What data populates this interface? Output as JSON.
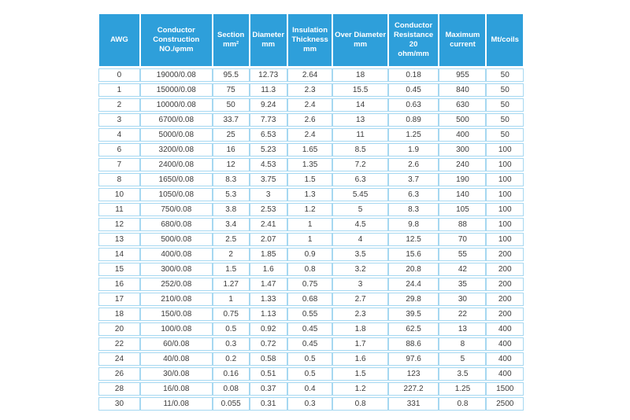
{
  "colors": {
    "header_background": "#2E9FDA",
    "header_text": "#FFFFFF",
    "cell_border": "#A6D8F1",
    "cell_text": "#3C3C3C",
    "cell_background": "#FFFFFF",
    "page_background": "#FFFFFF"
  },
  "chart_data": {
    "type": "table",
    "columns": [
      "AWG",
      "Conductor\nConstruction\nNO./φmm",
      "Section\nmm²",
      "Diameter\nmm",
      "Insulation\nThickness\nmm",
      "Over Diameter\nmm",
      "Conductor\nResistance 20\nohm/mm",
      "Maximum\ncurrent",
      "Mt/coils"
    ],
    "rows": [
      [
        "0",
        "19000/0.08",
        "95.5",
        "12.73",
        "2.64",
        "18",
        "0.18",
        "955",
        "50"
      ],
      [
        "1",
        "15000/0.08",
        "75",
        "11.3",
        "2.3",
        "15.5",
        "0.45",
        "840",
        "50"
      ],
      [
        "2",
        "10000/0.08",
        "50",
        "9.24",
        "2.4",
        "14",
        "0.63",
        "630",
        "50"
      ],
      [
        "3",
        "6700/0.08",
        "33.7",
        "7.73",
        "2.6",
        "13",
        "0.89",
        "500",
        "50"
      ],
      [
        "4",
        "5000/0.08",
        "25",
        "6.53",
        "2.4",
        "11",
        "1.25",
        "400",
        "50"
      ],
      [
        "6",
        "3200/0.08",
        "16",
        "5.23",
        "1.65",
        "8.5",
        "1.9",
        "300",
        "100"
      ],
      [
        "7",
        "2400/0.08",
        "12",
        "4.53",
        "1.35",
        "7.2",
        "2.6",
        "240",
        "100"
      ],
      [
        "8",
        "1650/0.08",
        "8.3",
        "3.75",
        "1.5",
        "6.3",
        "3.7",
        "190",
        "100"
      ],
      [
        "10",
        "1050/0.08",
        "5.3",
        "3",
        "1.3",
        "5.45",
        "6.3",
        "140",
        "100"
      ],
      [
        "11",
        "750/0.08",
        "3.8",
        "2.53",
        "1.2",
        "5",
        "8.3",
        "105",
        "100"
      ],
      [
        "12",
        "680/0.08",
        "3.4",
        "2.41",
        "1",
        "4.5",
        "9.8",
        "88",
        "100"
      ],
      [
        "13",
        "500/0.08",
        "2.5",
        "2.07",
        "1",
        "4",
        "12.5",
        "70",
        "100"
      ],
      [
        "14",
        "400/0.08",
        "2",
        "1.85",
        "0.9",
        "3.5",
        "15.6",
        "55",
        "200"
      ],
      [
        "15",
        "300/0.08",
        "1.5",
        "1.6",
        "0.8",
        "3.2",
        "20.8",
        "42",
        "200"
      ],
      [
        "16",
        "252/0.08",
        "1.27",
        "1.47",
        "0.75",
        "3",
        "24.4",
        "35",
        "200"
      ],
      [
        "17",
        "210/0.08",
        "1",
        "1.33",
        "0.68",
        "2.7",
        "29.8",
        "30",
        "200"
      ],
      [
        "18",
        "150/0.08",
        "0.75",
        "1.13",
        "0.55",
        "2.3",
        "39.5",
        "22",
        "200"
      ],
      [
        "20",
        "100/0.08",
        "0.5",
        "0.92",
        "0.45",
        "1.8",
        "62.5",
        "13",
        "400"
      ],
      [
        "22",
        "60/0.08",
        "0.3",
        "0.72",
        "0.45",
        "1.7",
        "88.6",
        "8",
        "400"
      ],
      [
        "24",
        "40/0.08",
        "0.2",
        "0.58",
        "0.5",
        "1.6",
        "97.6",
        "5",
        "400"
      ],
      [
        "26",
        "30/0.08",
        "0.16",
        "0.51",
        "0.5",
        "1.5",
        "123",
        "3.5",
        "400"
      ],
      [
        "28",
        "16/0.08",
        "0.08",
        "0.37",
        "0.4",
        "1.2",
        "227.2",
        "1.25",
        "1500"
      ],
      [
        "30",
        "11/0.08",
        "0.055",
        "0.31",
        "0.3",
        "0.8",
        "331",
        "0.8",
        "2500"
      ]
    ]
  }
}
